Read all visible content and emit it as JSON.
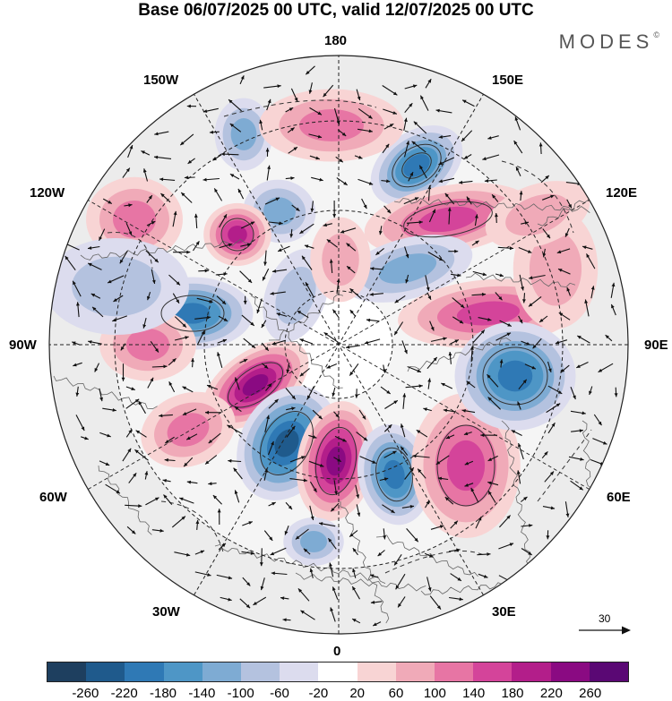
{
  "title": "Base 06/07/2025 00 UTC, valid 12/07/2025 00 UTC",
  "brand": "MODES",
  "brand_mark": "©",
  "longitude_labels": {
    "lon_180": "180",
    "lon_150w": "150W",
    "lon_150e": "150E",
    "lon_120w": "120W",
    "lon_120e": "120E",
    "lon_90w": "90W",
    "lon_90e": "90E",
    "lon_60w": "60W",
    "lon_60e": "60E",
    "lon_30w": "30W",
    "lon_30e": "30E",
    "lon_0": "0"
  },
  "reference_vector": {
    "value": "30"
  },
  "colorbar": {
    "ticks": [
      "-260",
      "-220",
      "-180",
      "-140",
      "-100",
      "-60",
      "-20",
      "20",
      "60",
      "100",
      "140",
      "180",
      "220",
      "260"
    ],
    "colors": [
      "#1e3f5f",
      "#1f5a8c",
      "#2f79b5",
      "#4e96c6",
      "#7eabd3",
      "#b4c2df",
      "#dcdcee",
      "#ffffff",
      "#f8d4d4",
      "#f0aab8",
      "#e775a4",
      "#d4449a",
      "#b31e8a",
      "#8a0a82",
      "#5a0874"
    ]
  }
}
